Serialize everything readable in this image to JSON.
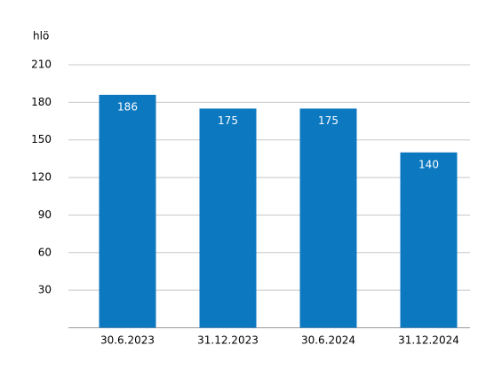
{
  "chart_data": {
    "type": "bar",
    "y_label": "hlö",
    "categories": [
      "30.6.2023",
      "31.12.2023",
      "30.6.2024",
      "31.12.2024"
    ],
    "values": [
      186,
      175,
      175,
      140
    ],
    "color": "#0b78c0",
    "ylim": [
      0,
      210
    ],
    "yticks": [
      30,
      60,
      90,
      120,
      150,
      180,
      210
    ],
    "grid": true
  }
}
